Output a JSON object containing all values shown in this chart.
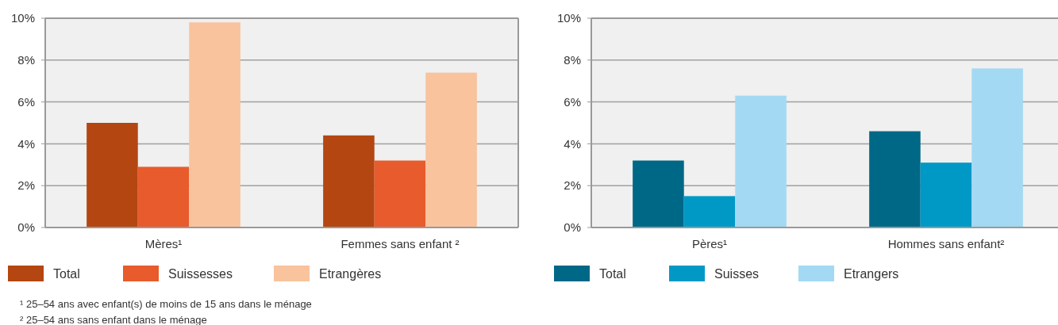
{
  "chart_data": [
    {
      "type": "bar",
      "categories": [
        "Mères¹",
        "Femmes sans enfant ²"
      ],
      "series": [
        {
          "name": "Total",
          "color": "#b34611",
          "values": [
            5.0,
            4.4
          ]
        },
        {
          "name": "Suissesses",
          "color": "#e85b2d",
          "values": [
            2.9,
            3.2
          ]
        },
        {
          "name": "Etrangères",
          "color": "#f8c39d",
          "values": [
            9.8,
            7.4
          ]
        }
      ],
      "ylim": [
        0,
        10
      ],
      "yticks": [
        {
          "value": 0,
          "label": "0%"
        },
        {
          "value": 2,
          "label": "2%"
        },
        {
          "value": 4,
          "label": "4%"
        },
        {
          "value": 6,
          "label": "6%"
        },
        {
          "value": 8,
          "label": "8%"
        },
        {
          "value": 10,
          "label": "10%"
        }
      ],
      "grid": "y",
      "legend": "bottom",
      "annotations": [
        "¹ 25–54 ans avec enfant(s) de moins de 15 ans dans le ménage",
        "² 25–54 ans sans enfant dans le ménage"
      ]
    },
    {
      "type": "bar",
      "categories": [
        "Pères¹",
        "Hommes sans enfant²"
      ],
      "series": [
        {
          "name": "Total",
          "color": "#006887",
          "values": [
            3.2,
            4.6
          ]
        },
        {
          "name": "Suisses",
          "color": "#0099c6",
          "values": [
            1.5,
            3.1
          ]
        },
        {
          "name": "Etrangers",
          "color": "#a3d9f3",
          "values": [
            6.3,
            7.6
          ]
        }
      ],
      "ylim": [
        0,
        10
      ],
      "yticks": [
        {
          "value": 0,
          "label": "0%"
        },
        {
          "value": 2,
          "label": "2%"
        },
        {
          "value": 4,
          "label": "4%"
        },
        {
          "value": 6,
          "label": "6%"
        },
        {
          "value": 8,
          "label": "8%"
        },
        {
          "value": 10,
          "label": "10%"
        }
      ],
      "grid": "y",
      "legend": "bottom"
    }
  ]
}
